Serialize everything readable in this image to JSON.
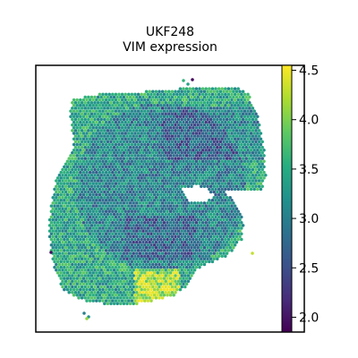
{
  "chart_data": {
    "type": "scatter",
    "title_lines": [
      "UKF248",
      "VIM expression"
    ],
    "xlabel": "",
    "ylabel": "",
    "colormap": "viridis",
    "colorbar": {
      "range": [
        1.85,
        4.55
      ],
      "ticks": [
        2.0,
        2.5,
        3.0,
        3.5,
        4.0,
        4.5
      ],
      "tick_labels": [
        "2.0",
        "2.5",
        "3.0",
        "3.5",
        "4.0",
        "4.5"
      ]
    },
    "value_summary": {
      "min": 1.9,
      "max": 4.5,
      "typical": 3.1
    },
    "axes": {
      "x_ticks": false,
      "y_ticks": false,
      "frame": true
    }
  }
}
